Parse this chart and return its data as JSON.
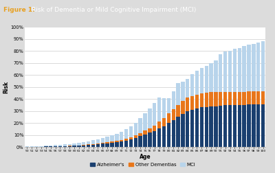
{
  "ages": [
    50,
    51,
    52,
    53,
    54,
    55,
    56,
    57,
    58,
    59,
    60,
    61,
    62,
    63,
    64,
    65,
    66,
    67,
    68,
    69,
    70,
    71,
    72,
    73,
    74,
    75,
    76,
    77,
    78,
    79,
    80,
    81,
    82,
    83,
    84,
    85,
    86,
    87,
    88,
    89,
    90,
    91,
    92,
    93,
    94,
    95,
    96,
    97,
    98,
    99,
    100
  ],
  "alzheimers": [
    0.2,
    0.2,
    0.3,
    0.3,
    0.4,
    0.5,
    0.5,
    0.6,
    0.8,
    0.9,
    1.0,
    1.2,
    1.5,
    1.8,
    2.1,
    2.4,
    2.8,
    3.2,
    3.7,
    4.2,
    4.8,
    5.5,
    6.5,
    7.5,
    9.0,
    10.5,
    12.0,
    13.5,
    15.5,
    17.5,
    20.0,
    22.5,
    25.0,
    27.5,
    30.0,
    31.0,
    32.0,
    33.0,
    33.5,
    34.0,
    34.0,
    34.5,
    35.0,
    35.0,
    35.0,
    35.0,
    35.0,
    35.5,
    35.5,
    35.5,
    35.5
  ],
  "other_dementias": [
    0.05,
    0.05,
    0.06,
    0.07,
    0.08,
    0.09,
    0.1,
    0.12,
    0.14,
    0.16,
    0.2,
    0.25,
    0.3,
    0.4,
    0.5,
    0.6,
    0.7,
    0.8,
    0.9,
    1.1,
    1.3,
    1.5,
    1.8,
    2.2,
    2.7,
    3.2,
    3.8,
    4.5,
    5.5,
    6.5,
    8.0,
    9.0,
    10.0,
    11.0,
    11.5,
    11.5,
    11.5,
    11.5,
    12.0,
    12.0,
    12.0,
    11.5,
    11.0,
    11.0,
    11.0,
    11.0,
    11.0,
    11.0,
    11.0,
    11.0,
    11.0
  ],
  "mci": [
    0.3,
    0.4,
    0.5,
    0.6,
    0.7,
    0.8,
    1.0,
    1.1,
    1.3,
    1.5,
    1.7,
    2.0,
    2.3,
    2.7,
    3.1,
    3.6,
    4.1,
    4.7,
    5.3,
    5.9,
    6.7,
    7.7,
    9.0,
    10.5,
    12.5,
    14.5,
    16.5,
    18.5,
    20.5,
    16.5,
    12.5,
    15.0,
    18.0,
    16.0,
    15.0,
    18.0,
    20.0,
    21.0,
    22.0,
    23.5,
    26.0,
    31.0,
    33.5,
    34.0,
    35.5,
    36.5,
    38.0,
    38.5,
    39.5,
    40.5,
    41.5
  ],
  "color_alzheimers": "#1a3f6f",
  "color_other": "#e8761a",
  "color_mci": "#b8d4eb",
  "color_header_bg": "#2b3a47",
  "color_header_text": "#ffffff",
  "color_label": "#e8a020",
  "color_plot_bg": "#ffffff",
  "color_figure_bg": "#dcdcdc",
  "color_inner_bg": "#f0f0f0",
  "title": "Risk of Dementia or Mild Cognitive Impairment (MCI)",
  "figure_label": "Figure 1:",
  "xlabel": "Age",
  "ylabel": "Risk",
  "ylim": [
    0,
    100
  ],
  "yticks": [
    0,
    10,
    20,
    30,
    40,
    50,
    60,
    70,
    80,
    90,
    100
  ],
  "yticklabels": [
    "0%",
    "10%",
    "20%",
    "30%",
    "40%",
    "50%",
    "60%",
    "70%",
    "80%",
    "90%",
    "100%"
  ],
  "legend_labels": [
    "Alzheimer's",
    "Other Dementias",
    "MCI"
  ],
  "grid_color": "#cccccc",
  "spine_color": "#aaaaaa"
}
